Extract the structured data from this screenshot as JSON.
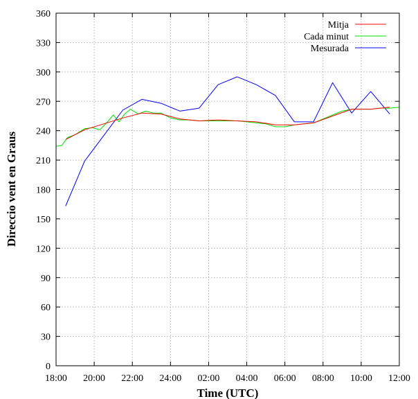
{
  "chart_data": {
    "type": "line",
    "xlabel": "Time (UTC)",
    "ylabel": "Direccio vent en Graus",
    "x_ticks": [
      "18:00",
      "20:00",
      "22:00",
      "24:00",
      "02:00",
      "04:00",
      "06:00",
      "08:00",
      "10:00",
      "12:00"
    ],
    "x_tick_hours": [
      18,
      20,
      22,
      24,
      26,
      28,
      30,
      32,
      34,
      36
    ],
    "xlim_hours": [
      18,
      36
    ],
    "y_ticks": [
      0,
      30,
      60,
      90,
      120,
      150,
      180,
      210,
      240,
      270,
      300,
      330,
      360
    ],
    "ylim": [
      0,
      360
    ],
    "grid": true,
    "legend_position": "top-right",
    "series": [
      {
        "name": "Mitja",
        "color": "#ff0000",
        "x_hours": [
          18.5,
          19.5,
          20.5,
          21.5,
          22.5,
          23.5,
          24.5,
          25.5,
          26.5,
          27.5,
          28.5,
          29.5,
          30.5,
          31.5,
          32.5,
          33.5,
          34.5,
          35.5
        ],
        "values": [
          231,
          241,
          247,
          253,
          258,
          257,
          252,
          250,
          251,
          250,
          249,
          246,
          246,
          248,
          255,
          262,
          262,
          264
        ]
      },
      {
        "name": "Cada minut",
        "color": "#00dd00",
        "x_hours": [
          18.0,
          18.3,
          18.6,
          19.0,
          19.5,
          19.9,
          20.3,
          20.7,
          21.0,
          21.3,
          21.6,
          21.9,
          22.3,
          22.7,
          23.1,
          23.5,
          24.0,
          24.5,
          25.0,
          25.5,
          26.0,
          26.5,
          27.0,
          27.5,
          28.0,
          28.5,
          29.0,
          29.5,
          30.0,
          30.5,
          31.0,
          31.5,
          32.0,
          32.5,
          33.0,
          33.5,
          34.0,
          34.5,
          35.0,
          35.5,
          36.0
        ],
        "values": [
          224,
          225,
          233,
          236,
          242,
          243,
          241,
          249,
          256,
          249,
          257,
          262,
          257,
          260,
          258,
          258,
          253,
          251,
          251,
          250,
          250,
          250,
          250,
          250,
          249,
          248,
          247,
          244,
          244,
          246,
          247,
          248,
          252,
          256,
          260,
          262,
          262,
          262,
          263,
          263,
          264
        ]
      },
      {
        "name": "Mesurada",
        "color": "#0000ff",
        "x_hours": [
          18.5,
          19.5,
          20.5,
          21.5,
          22.5,
          23.5,
          24.5,
          25.5,
          26.5,
          27.5,
          28.5,
          29.5,
          30.5,
          31.5,
          32.5,
          33.5,
          34.5,
          35.5
        ],
        "values": [
          163,
          209,
          235,
          261,
          272,
          268,
          260,
          263,
          287,
          295,
          287,
          276,
          249,
          249,
          289,
          258,
          280,
          257
        ]
      }
    ]
  }
}
